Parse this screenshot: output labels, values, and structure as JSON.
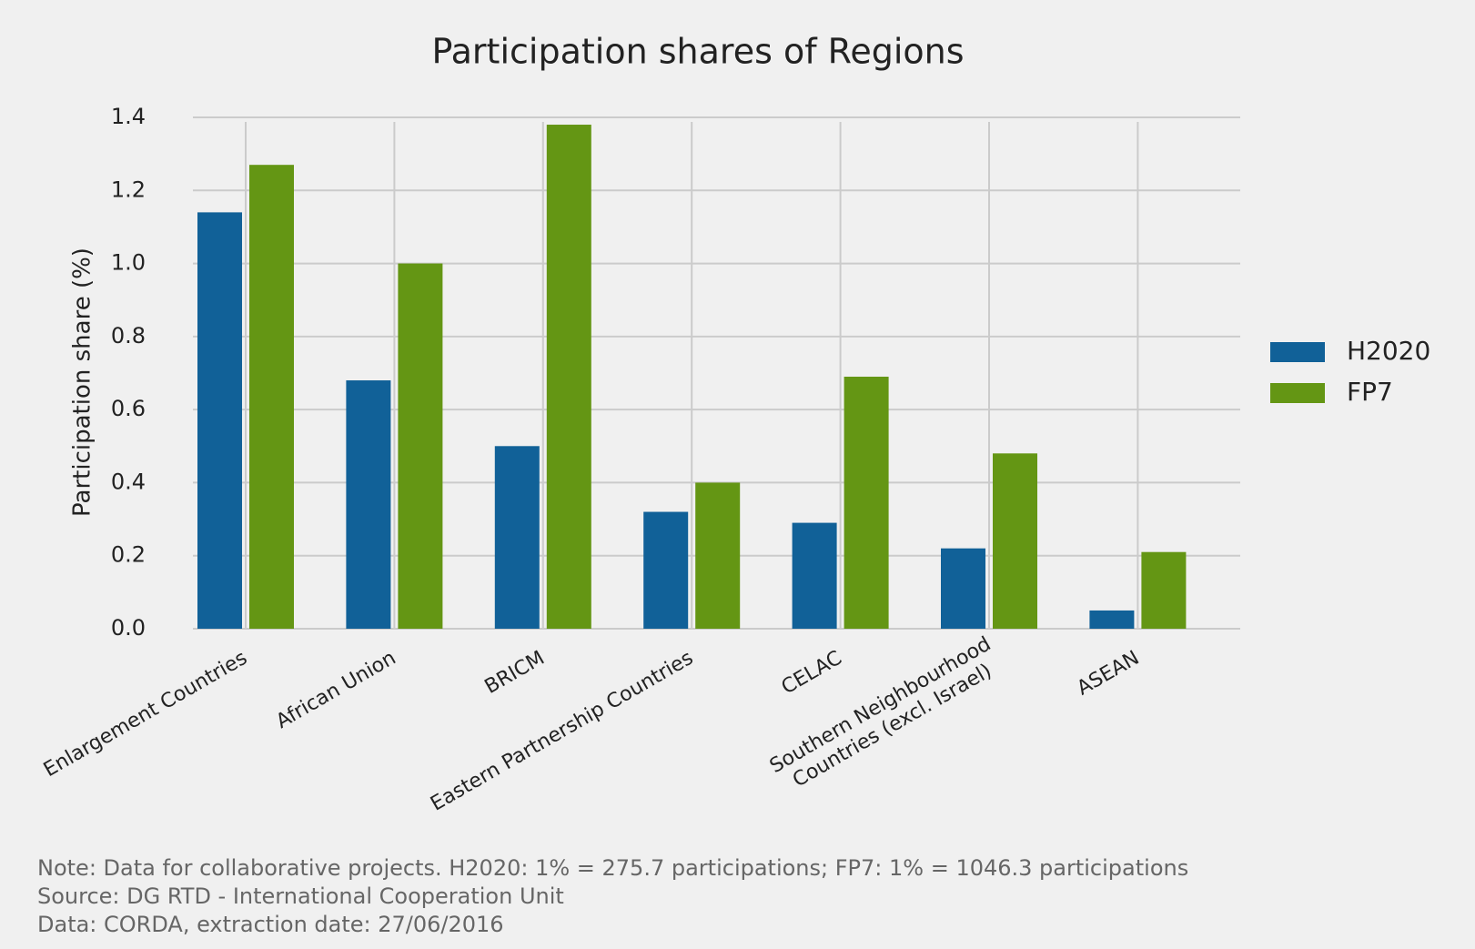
{
  "chart_data": {
    "type": "bar",
    "title": "Participation shares of Regions",
    "ylabel": "Participation share (%)",
    "categories": [
      "Enlargement Countries",
      "African Union",
      "BRICM",
      "Eastern Partnership Countries",
      "CELAC",
      "Southern Neighbourhood\nCountries (excl. Israel)",
      "ASEAN"
    ],
    "series": [
      {
        "name": "H2020",
        "color": "#116198",
        "values": [
          1.14,
          0.68,
          0.5,
          0.32,
          0.29,
          0.22,
          0.05
        ]
      },
      {
        "name": "FP7",
        "color": "#649614",
        "values": [
          1.27,
          1.0,
          1.38,
          0.4,
          0.69,
          0.48,
          0.21
        ]
      }
    ],
    "ylim": [
      0,
      1.4
    ],
    "yticks": [
      {
        "value": 0,
        "label": "0.0"
      },
      0.2,
      0.4,
      0.6,
      0.8,
      {
        "value": 1,
        "label": "1.0"
      },
      1.2,
      1.4
    ],
    "grid": true,
    "legend": "right",
    "notes": [
      "Note: Data for collaborative projects. H2020: 1% = 275.7 participations; FP7: 1% = 1046.3 participations",
      "Source: DG RTD - International Cooperation Unit",
      "Data: CORDA, extraction date: 27/06/2016"
    ]
  }
}
